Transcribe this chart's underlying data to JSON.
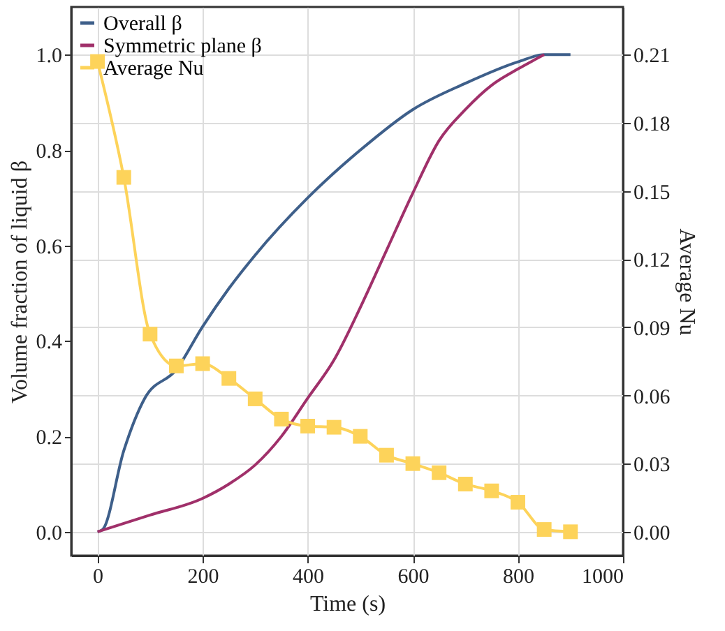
{
  "chart_data": {
    "type": "line",
    "xlabel": "Time (s)",
    "ylabel": "Volume fraction of liquid  β",
    "y2label": "Average Nu",
    "xlim": [
      -50,
      1000
    ],
    "xticks": [
      0,
      200,
      400,
      600,
      800,
      1000
    ],
    "ylim": [
      -0.05,
      1.1
    ],
    "yticks": [
      {
        "value": 0,
        "label": "0.0"
      },
      0.2,
      0.4,
      0.6,
      0.8,
      {
        "value": 1,
        "label": "1.0"
      }
    ],
    "y2lim": [
      -0.0105,
      0.231
    ],
    "y2ticks": [
      {
        "value": 0,
        "label": "0.00"
      },
      0.03,
      0.06,
      0.09,
      0.12,
      0.15,
      0.18,
      0.21
    ],
    "grid": true,
    "legend": "top left",
    "series": [
      {
        "name": "Overall β",
        "color": "#3e5f8a",
        "marker": "none",
        "x": [
          0,
          10,
          50,
          90,
          150,
          200,
          250,
          300,
          400,
          500,
          600,
          700,
          800,
          850,
          900
        ],
        "values": [
          0,
          0.005,
          0.17,
          0.28,
          0.34,
          0.43,
          0.51,
          0.58,
          0.7,
          0.8,
          0.885,
          0.94,
          0.985,
          1.0,
          1.0
        ]
      },
      {
        "name": "Symmetric plane β",
        "color": "#a0306a",
        "marker": "none",
        "x": [
          0,
          100,
          200,
          250,
          300,
          350,
          400,
          450,
          500,
          550,
          600,
          650,
          700,
          750,
          800,
          850
        ],
        "values": [
          0,
          0.035,
          0.07,
          0.1,
          0.14,
          0.2,
          0.28,
          0.36,
          0.47,
          0.59,
          0.71,
          0.82,
          0.885,
          0.936,
          0.97,
          1.0
        ]
      },
      {
        "name": "Average Nu",
        "color": "#fdd35a",
        "marker": "square",
        "axis": "y2",
        "x": [
          0,
          50,
          100,
          150,
          200,
          250,
          300,
          350,
          400,
          450,
          500,
          550,
          600,
          650,
          700,
          750,
          800,
          850,
          900
        ],
        "values": [
          0.207,
          0.156,
          0.087,
          0.073,
          0.074,
          0.0675,
          0.0585,
          0.0496,
          0.0465,
          0.046,
          0.042,
          0.0337,
          0.03,
          0.026,
          0.021,
          0.018,
          0.013,
          0.001,
          0
        ]
      }
    ]
  }
}
